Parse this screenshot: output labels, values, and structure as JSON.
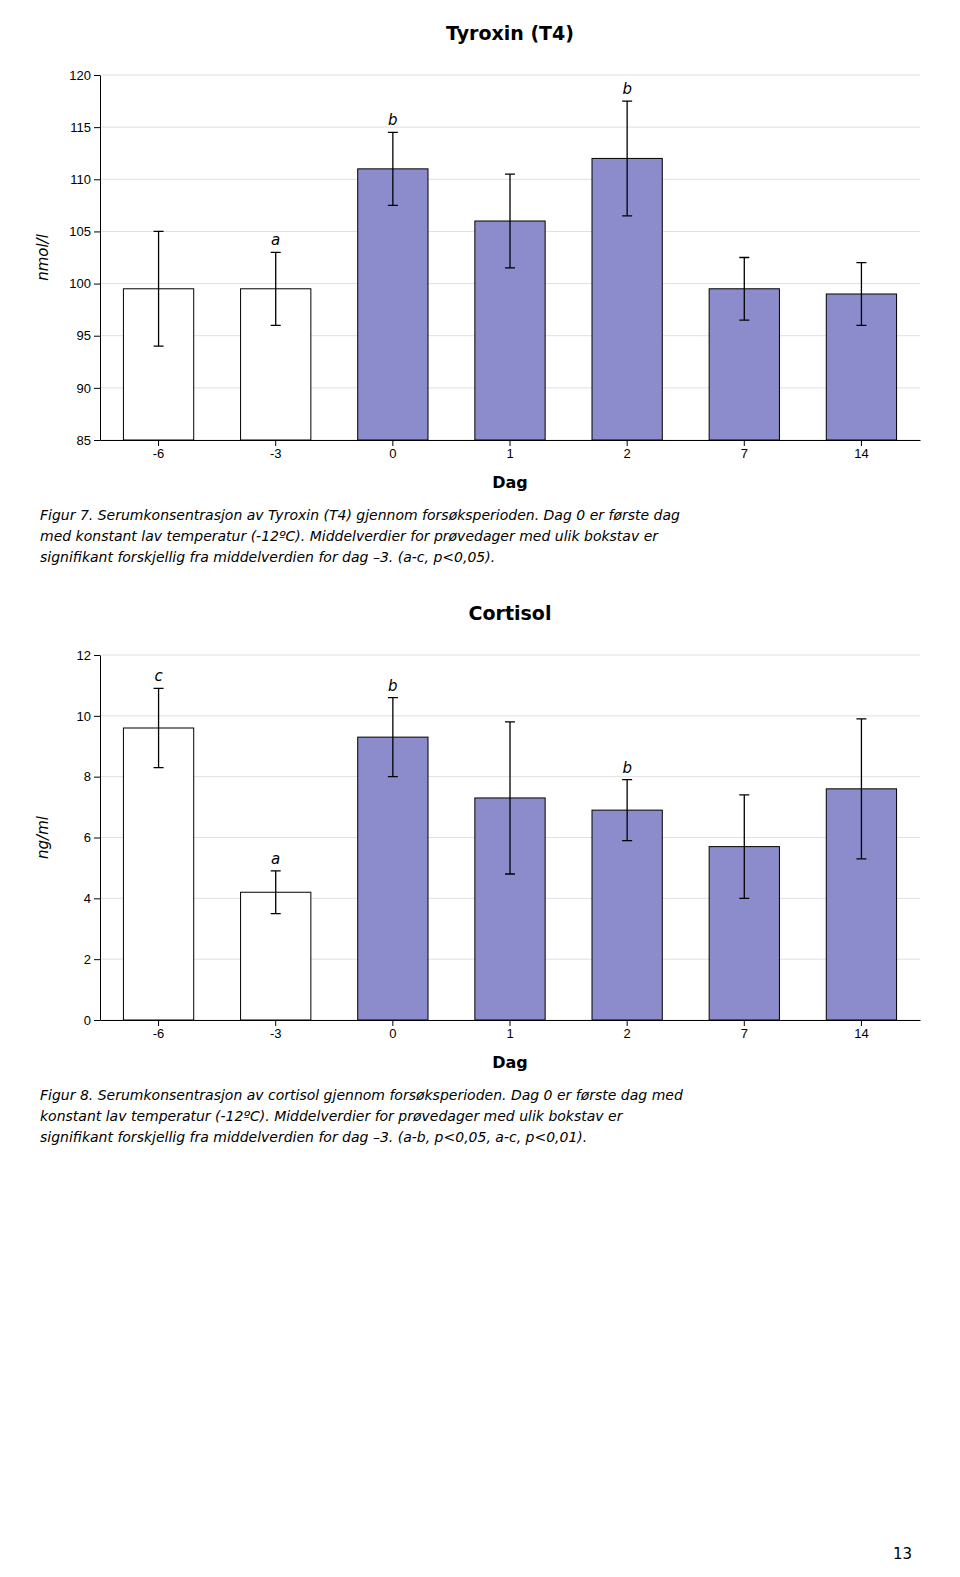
{
  "chart_data": [
    {
      "type": "bar",
      "title": "Tyroxin (T4)",
      "x_label": "Dag",
      "y_label": "nmol/l",
      "categories": [
        -6,
        -3,
        0,
        1,
        2,
        7,
        14
      ],
      "values": [
        99.5,
        99.5,
        111.0,
        106.0,
        112.0,
        99.5,
        99.0
      ],
      "errors": [
        5.5,
        3.5,
        3.5,
        4.5,
        5.5,
        3.0,
        3.0
      ],
      "colors": [
        "white",
        "white",
        "#8c8ccc",
        "#8c8ccc",
        "#8c8ccc",
        "#8c8ccc",
        "#8c8ccc"
      ],
      "letters": [
        null,
        "a",
        "b",
        null,
        "b",
        null,
        null
      ],
      "ylim": [
        85,
        120
      ],
      "yticks": [
        85,
        90,
        95,
        100,
        105,
        110,
        115,
        120
      ],
      "grid": true,
      "annotations": [
        "Figur 7. Serumkonsentrasjon av Tyroxin (T4) gjennom forsøksperioden. Dag 0 er første dag",
        "med konstant lav temperatur (-12ºC). Middelverdier for prøvedager med ulik bokstav er",
        "signifikant forskjellig fra middelverdien for dag –3. (a-c, p<0,05)."
      ]
    },
    {
      "type": "bar",
      "title": "Cortisol",
      "x_label": "Dag",
      "y_label": "ng/ml",
      "categories": [
        -6,
        -3,
        0,
        1,
        2,
        7,
        14
      ],
      "values": [
        9.6,
        4.2,
        9.3,
        7.3,
        6.9,
        5.7,
        7.6
      ],
      "errors": [
        1.3,
        0.7,
        1.3,
        2.5,
        1.0,
        1.7,
        2.3
      ],
      "colors": [
        "white",
        "white",
        "#8c8ccc",
        "#8c8ccc",
        "#8c8ccc",
        "#8c8ccc",
        "#8c8ccc"
      ],
      "letters": [
        "c",
        "a",
        "b",
        null,
        "b",
        null,
        null
      ],
      "ylim": [
        0,
        12
      ],
      "yticks": [
        0,
        2,
        4,
        6,
        8,
        10,
        12
      ],
      "grid": true,
      "annotations": [
        "Figur 8. Serumkonsentrasjon av cortisol gjennom forsøksperioden. Dag 0 er første dag med",
        "konstant lav temperatur (-12ºC). Middelverdier for prøvedager med ulik bokstav er",
        "signifikant forskjellig fra middelverdien for dag –3. (a-b, p<0,05, a-c, p<0,01)."
      ]
    }
  ],
  "page_number": "13"
}
